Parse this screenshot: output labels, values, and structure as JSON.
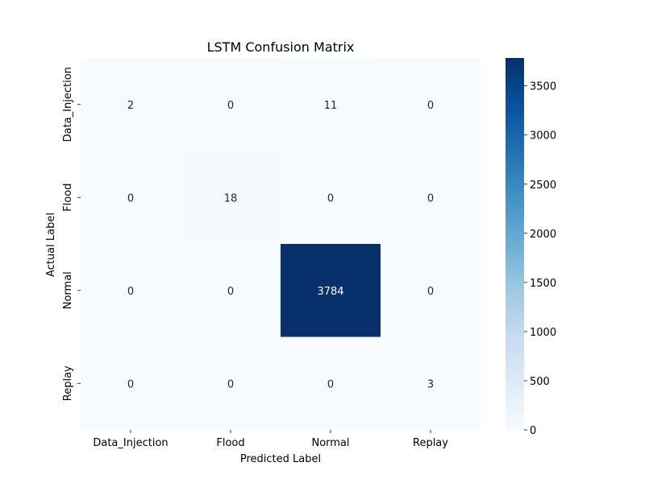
{
  "chart_data": {
    "type": "heatmap",
    "title": "LSTM Confusion Matrix",
    "xlabel": "Predicted Label",
    "ylabel": "Actual Label",
    "x_categories": [
      "Data_Injection",
      "Flood",
      "Normal",
      "Replay"
    ],
    "y_categories": [
      "Data_Injection",
      "Flood",
      "Normal",
      "Replay"
    ],
    "values": [
      [
        2,
        0,
        11,
        0
      ],
      [
        0,
        18,
        0,
        0
      ],
      [
        0,
        0,
        3784,
        0
      ],
      [
        0,
        0,
        0,
        3
      ]
    ],
    "colorbar": {
      "range": [
        0,
        3784
      ],
      "ticks": [
        0,
        500,
        1000,
        1500,
        2000,
        2500,
        3000,
        3500
      ]
    },
    "colormap": "Blues"
  }
}
